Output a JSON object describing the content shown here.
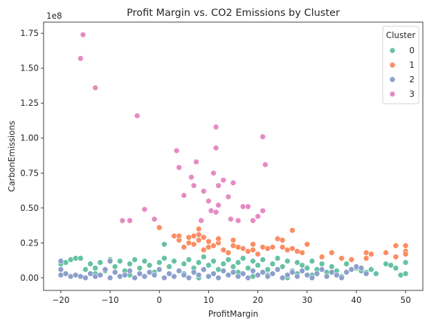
{
  "chart_data": {
    "type": "scatter",
    "title": "Profit Margin vs. CO2 Emissions by Cluster",
    "xlabel": "ProfitMargin",
    "ylabel": "CarbonEmissions",
    "y_scale_note": "1e8",
    "xlim": [
      -23.5,
      53.5
    ],
    "ylim": [
      -0.09,
      1.83
    ],
    "x_ticks": [
      -20,
      -10,
      0,
      10,
      20,
      30,
      40,
      50
    ],
    "x_tick_labels": [
      "−20",
      "−10",
      "0",
      "10",
      "20",
      "30",
      "40",
      "50"
    ],
    "y_ticks": [
      0,
      0.25,
      0.5,
      0.75,
      1.0,
      1.25,
      1.5,
      1.75
    ],
    "y_tick_labels": [
      "0.00",
      "0.25",
      "0.50",
      "0.75",
      "1.00",
      "1.25",
      "1.50",
      "1.75"
    ],
    "grid": false,
    "legend": {
      "title": "Cluster",
      "placement": "top-right"
    },
    "series": [
      {
        "name": "0",
        "color": "#66c2a5",
        "points": [
          [
            -20,
            0.1
          ],
          [
            -19,
            0.11
          ],
          [
            -18,
            0.13
          ],
          [
            -17,
            0.14
          ],
          [
            -16,
            0.14
          ],
          [
            -15,
            0.06
          ],
          [
            -14,
            0.1
          ],
          [
            -13,
            0.07
          ],
          [
            -12,
            0.11
          ],
          [
            -11,
            0.05
          ],
          [
            -10,
            0.13
          ],
          [
            -9,
            0.08
          ],
          [
            -8,
            0.12
          ],
          [
            -7,
            0.05
          ],
          [
            -6,
            0.1
          ],
          [
            -5,
            0.13
          ],
          [
            -4,
            0.07
          ],
          [
            -3,
            0.12
          ],
          [
            -2,
            0.09
          ],
          [
            -1,
            0.04
          ],
          [
            0,
            0.11
          ],
          [
            1,
            0.14
          ],
          [
            1,
            0.24
          ],
          [
            2,
            0.08
          ],
          [
            3,
            0.12
          ],
          [
            4,
            0.05
          ],
          [
            5,
            0.1
          ],
          [
            6,
            0.13
          ],
          [
            7,
            0.07
          ],
          [
            8,
            0.11
          ],
          [
            9,
            0.15
          ],
          [
            10,
            0.09
          ],
          [
            11,
            0.12
          ],
          [
            12,
            0.06
          ],
          [
            13,
            0.1
          ],
          [
            14,
            0.13
          ],
          [
            15,
            0.08
          ],
          [
            16,
            0.11
          ],
          [
            17,
            0.14
          ],
          [
            18,
            0.07
          ],
          [
            19,
            0.12
          ],
          [
            20,
            0.09
          ],
          [
            21,
            0.13
          ],
          [
            22,
            0.06
          ],
          [
            23,
            0.1
          ],
          [
            24,
            0.14
          ],
          [
            25,
            0.08
          ],
          [
            26,
            0.12
          ],
          [
            27,
            0.05
          ],
          [
            28,
            0.11
          ],
          [
            29,
            0.09
          ],
          [
            30,
            0.07
          ],
          [
            31,
            0.12
          ],
          [
            32,
            0.06
          ],
          [
            33,
            0.1
          ],
          [
            35,
            0.08
          ],
          [
            36,
            0.05
          ],
          [
            38,
            0.1
          ],
          [
            39,
            0.06
          ],
          [
            40,
            0.07
          ],
          [
            41,
            0.05
          ],
          [
            42,
            0.04
          ],
          [
            43,
            0.06
          ],
          [
            44,
            0.03
          ],
          [
            46,
            0.1
          ],
          [
            47,
            0.09
          ],
          [
            48,
            0.07
          ],
          [
            49,
            0.02
          ],
          [
            50,
            0.11
          ],
          [
            50,
            0.03
          ],
          [
            3,
            0.01
          ],
          [
            8,
            0.0
          ],
          [
            14,
            0.02
          ],
          [
            19,
            0.01
          ],
          [
            26,
            0.0
          ],
          [
            31,
            0.02
          ],
          [
            37,
            0.01
          ],
          [
            -6,
            0.02
          ],
          [
            -13,
            0.03
          ],
          [
            5,
            0.03
          ],
          [
            16,
            0.04
          ],
          [
            22,
            0.02
          ],
          [
            28,
            0.03
          ],
          [
            34,
            0.04
          ]
        ]
      },
      {
        "name": "1",
        "color": "#fc8d62",
        "points": [
          [
            0,
            0.36
          ],
          [
            3,
            0.3
          ],
          [
            4,
            0.27
          ],
          [
            4,
            0.3
          ],
          [
            5,
            0.22
          ],
          [
            6,
            0.25
          ],
          [
            6,
            0.29
          ],
          [
            7,
            0.24
          ],
          [
            7,
            0.3
          ],
          [
            8,
            0.35
          ],
          [
            8,
            0.31
          ],
          [
            8,
            0.27
          ],
          [
            9,
            0.29
          ],
          [
            9,
            0.2
          ],
          [
            10,
            0.26
          ],
          [
            10,
            0.22
          ],
          [
            11,
            0.23
          ],
          [
            12,
            0.25
          ],
          [
            12,
            0.28
          ],
          [
            13,
            0.2
          ],
          [
            14,
            0.18
          ],
          [
            15,
            0.27
          ],
          [
            15,
            0.23
          ],
          [
            16,
            0.22
          ],
          [
            17,
            0.21
          ],
          [
            18,
            0.19
          ],
          [
            19,
            0.2
          ],
          [
            19,
            0.24
          ],
          [
            20,
            0.17
          ],
          [
            21,
            0.22
          ],
          [
            22,
            0.21
          ],
          [
            23,
            0.22
          ],
          [
            24,
            0.28
          ],
          [
            25,
            0.27
          ],
          [
            25,
            0.22
          ],
          [
            26,
            0.2
          ],
          [
            27,
            0.34
          ],
          [
            27,
            0.21
          ],
          [
            28,
            0.19
          ],
          [
            29,
            0.18
          ],
          [
            30,
            0.24
          ],
          [
            33,
            0.15
          ],
          [
            35,
            0.18
          ],
          [
            37,
            0.14
          ],
          [
            39,
            0.13
          ],
          [
            42,
            0.14
          ],
          [
            42,
            0.18
          ],
          [
            43,
            0.17
          ],
          [
            46,
            0.18
          ],
          [
            48,
            0.23
          ],
          [
            48,
            0.15
          ],
          [
            50,
            0.23
          ],
          [
            50,
            0.19
          ],
          [
            50,
            0.17
          ]
        ]
      },
      {
        "name": "2",
        "color": "#8da0cb",
        "points": [
          [
            -20,
            0.12
          ],
          [
            -20,
            0.06
          ],
          [
            -20,
            0.02
          ],
          [
            -19,
            0.03
          ],
          [
            -18,
            0.01
          ],
          [
            -17,
            0.02
          ],
          [
            -16,
            0.01
          ],
          [
            -15,
            0.0
          ],
          [
            -14,
            0.03
          ],
          [
            -13,
            0.01
          ],
          [
            -12,
            0.02
          ],
          [
            -11,
            0.06
          ],
          [
            -10,
            0.12
          ],
          [
            -10,
            0.0
          ],
          [
            -9,
            0.04
          ],
          [
            -8,
            0.01
          ],
          [
            -7,
            0.02
          ],
          [
            -6,
            0.05
          ],
          [
            -5,
            0.0
          ],
          [
            -4,
            0.03
          ],
          [
            -3,
            0.01
          ],
          [
            -2,
            0.04
          ],
          [
            -1,
            0.02
          ],
          [
            0,
            0.06
          ],
          [
            1,
            0.0
          ],
          [
            2,
            0.03
          ],
          [
            3,
            0.01
          ],
          [
            4,
            0.05
          ],
          [
            5,
            0.02
          ],
          [
            6,
            0.0
          ],
          [
            7,
            0.04
          ],
          [
            8,
            0.02
          ],
          [
            9,
            0.06
          ],
          [
            10,
            0.01
          ],
          [
            11,
            0.03
          ],
          [
            12,
            0.0
          ],
          [
            13,
            0.05
          ],
          [
            14,
            0.02
          ],
          [
            15,
            0.04
          ],
          [
            16,
            0.01
          ],
          [
            17,
            0.03
          ],
          [
            18,
            0.0
          ],
          [
            19,
            0.05
          ],
          [
            20,
            0.02
          ],
          [
            21,
            0.04
          ],
          [
            22,
            0.01
          ],
          [
            23,
            0.03
          ],
          [
            24,
            0.06
          ],
          [
            25,
            0.0
          ],
          [
            26,
            0.02
          ],
          [
            27,
            0.04
          ],
          [
            28,
            0.01
          ],
          [
            29,
            0.05
          ],
          [
            30,
            0.02
          ],
          [
            31,
            0.0
          ],
          [
            32,
            0.03
          ],
          [
            33,
            0.06
          ],
          [
            34,
            0.01
          ],
          [
            35,
            0.04
          ],
          [
            36,
            0.02
          ],
          [
            37,
            0.0
          ],
          [
            38,
            0.04
          ],
          [
            39,
            0.06
          ],
          [
            40,
            0.08
          ],
          [
            41,
            0.07
          ],
          [
            42,
            0.03
          ]
        ]
      },
      {
        "name": "3",
        "color": "#e78ac3",
        "points": [
          [
            -16,
            1.57
          ],
          [
            -15.5,
            1.74
          ],
          [
            -13,
            1.36
          ],
          [
            -7.5,
            0.41
          ],
          [
            -6,
            0.41
          ],
          [
            -4.5,
            1.16
          ],
          [
            -3,
            0.49
          ],
          [
            -1,
            0.42
          ],
          [
            3.5,
            0.91
          ],
          [
            4,
            0.79
          ],
          [
            5,
            0.59
          ],
          [
            6.5,
            0.72
          ],
          [
            7,
            0.66
          ],
          [
            7.5,
            0.83
          ],
          [
            8.5,
            0.41
          ],
          [
            9,
            0.62
          ],
          [
            10,
            0.55
          ],
          [
            10.5,
            0.48
          ],
          [
            11,
            0.75
          ],
          [
            11.5,
            0.47
          ],
          [
            12,
            0.66
          ],
          [
            11.5,
            1.08
          ],
          [
            11.5,
            0.93
          ],
          [
            12,
            0.52
          ],
          [
            13,
            0.7
          ],
          [
            14,
            0.58
          ],
          [
            14.5,
            0.42
          ],
          [
            15,
            0.68
          ],
          [
            16,
            0.41
          ],
          [
            17,
            0.51
          ],
          [
            18,
            0.51
          ],
          [
            19,
            0.41
          ],
          [
            20,
            0.44
          ],
          [
            21,
            1.01
          ],
          [
            21,
            0.48
          ],
          [
            21.5,
            0.81
          ]
        ]
      }
    ]
  }
}
